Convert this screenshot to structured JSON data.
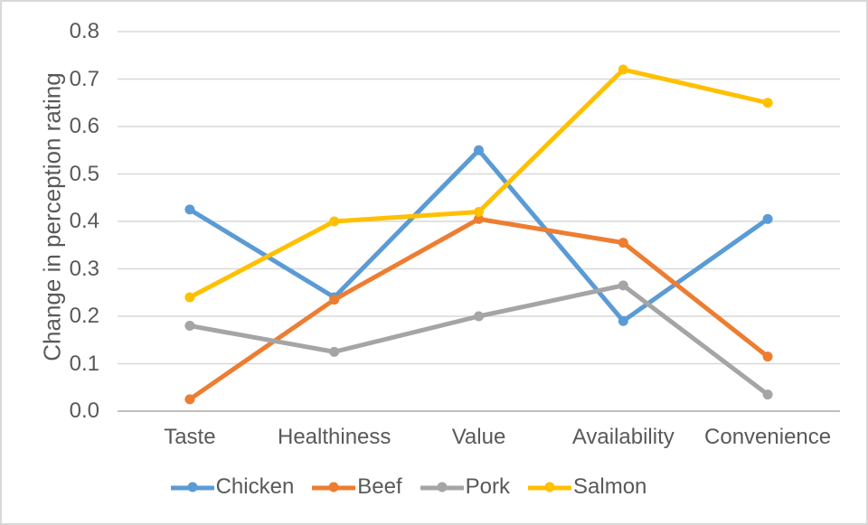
{
  "chart_data": {
    "type": "line",
    "title": "",
    "xlabel": "",
    "ylabel": "Change in perception rating",
    "categories": [
      "Taste",
      "Healthiness",
      "Value",
      "Availability",
      "Convenience"
    ],
    "series": [
      {
        "name": "Chicken",
        "color": "#5B9BD5",
        "values": [
          0.425,
          0.24,
          0.55,
          0.19,
          0.405
        ]
      },
      {
        "name": "Beef",
        "color": "#ED7D31",
        "values": [
          0.025,
          0.235,
          0.405,
          0.355,
          0.115
        ]
      },
      {
        "name": "Pork",
        "color": "#A5A5A5",
        "values": [
          0.18,
          0.125,
          0.2,
          0.265,
          0.035
        ]
      },
      {
        "name": "Salmon",
        "color": "#FFC000",
        "values": [
          0.24,
          0.4,
          0.42,
          0.72,
          0.65
        ]
      }
    ],
    "ylim": [
      0.0,
      0.8
    ],
    "ytick_step": 0.1,
    "ytick_labels": [
      "0.0",
      "0.1",
      "0.2",
      "0.3",
      "0.4",
      "0.5",
      "0.6",
      "0.7",
      "0.8"
    ],
    "grid": true,
    "legend_position": "bottom",
    "style": {
      "background": "#FFFFFF",
      "frame_border": "#D8D8D8",
      "gridline_color": "#D9D9D9",
      "axis_line_color": "#BFBFBF",
      "text_color": "#595959"
    }
  }
}
